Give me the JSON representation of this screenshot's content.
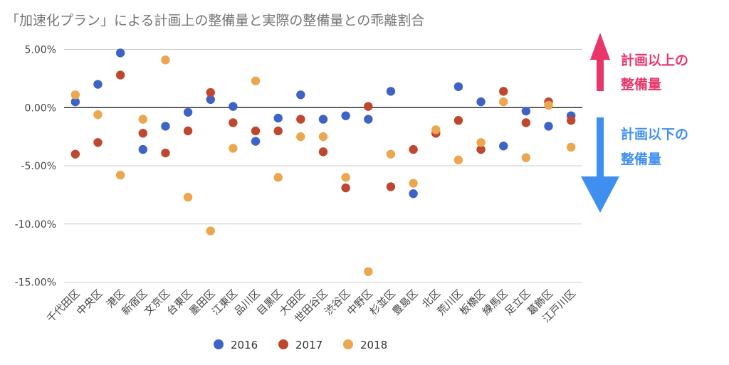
{
  "chart_data": {
    "type": "scatter",
    "title": "「加速化プラン」による計画上の整備量と実際の整備量との乖離割合",
    "xlabel": "",
    "ylabel": "",
    "ylim": [
      -15,
      5
    ],
    "yticks": [
      5,
      0,
      -5,
      -10,
      -15
    ],
    "ytick_labels": [
      "5.00%",
      "0.00%",
      "-5.00%",
      "-10.00%",
      "-15.00%"
    ],
    "grid": true,
    "legend_position": "bottom",
    "categories": [
      "千代田区",
      "中央区",
      "港区",
      "新宿区",
      "文京区",
      "台東区",
      "墨田区",
      "江東区",
      "品川区",
      "目黒区",
      "大田区",
      "世田谷区",
      "渋谷区",
      "中野区",
      "杉並区",
      "豊島区",
      "北区",
      "荒川区",
      "板橋区",
      "練馬区",
      "足立区",
      "葛飾区",
      "江戸川区"
    ],
    "series": [
      {
        "name": "2016",
        "color": "#3e63c6",
        "values": [
          0.5,
          2.0,
          4.7,
          -3.6,
          -1.6,
          -0.4,
          0.7,
          0.1,
          -2.9,
          -0.9,
          1.1,
          -1.0,
          -0.7,
          -1.0,
          1.4,
          -7.4,
          -2.2,
          1.8,
          0.5,
          -3.3,
          -0.3,
          -1.6,
          -0.7
        ]
      },
      {
        "name": "2017",
        "color": "#c0462d",
        "values": [
          -4.0,
          -3.0,
          2.8,
          -2.2,
          -3.9,
          -2.0,
          1.3,
          -1.3,
          -2.0,
          -2.0,
          -1.0,
          -3.8,
          -6.9,
          0.1,
          -6.8,
          -3.6,
          -2.2,
          -1.1,
          -3.6,
          1.4,
          -1.3,
          0.5,
          -1.1
        ]
      },
      {
        "name": "2018",
        "color": "#eba64e",
        "values": [
          1.1,
          -0.6,
          -5.8,
          -1.0,
          4.1,
          -7.7,
          -10.6,
          -3.5,
          2.3,
          -6.0,
          -2.5,
          -2.5,
          -6.0,
          -14.1,
          -4.0,
          -6.5,
          -1.9,
          -4.5,
          -3.0,
          0.5,
          -4.3,
          0.2,
          -3.4
        ]
      }
    ],
    "annotations": {
      "above": {
        "lines": [
          "計画以上の",
          "整備量"
        ],
        "color": "#e8356a"
      },
      "below": {
        "lines": [
          "計画以下の",
          "整備量"
        ],
        "color": "#3f8ff0"
      }
    }
  }
}
